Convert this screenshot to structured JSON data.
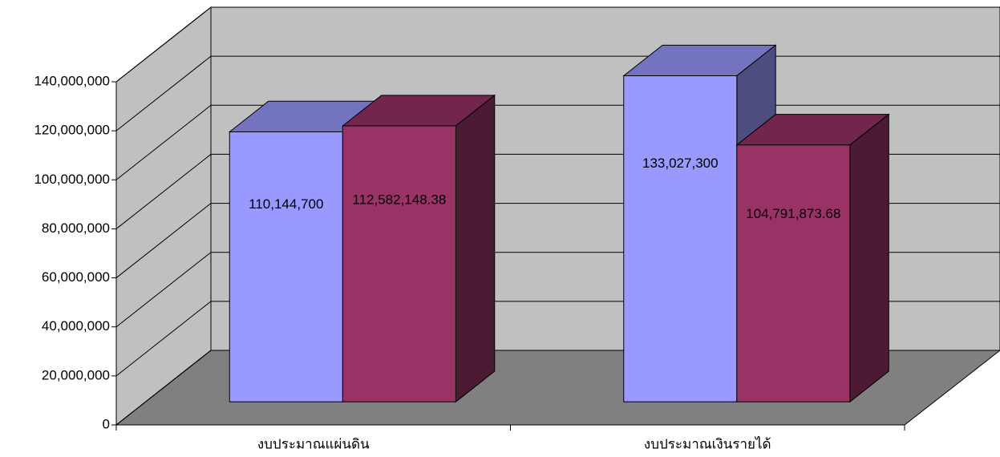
{
  "chart_data": {
    "type": "bar3d",
    "categories": [
      "งบประมาณแผ่นดิน",
      "งบประมาณเงินรายได้"
    ],
    "series": [
      {
        "color": "#9999ff",
        "values": [
          110144700,
          133027300
        ],
        "value_labels": [
          "110,144,700",
          "133,027,300"
        ]
      },
      {
        "color": "#993366",
        "values": [
          112582148.38,
          104791873.68
        ],
        "value_labels": [
          "112,582,148.38",
          "104,791,873.68"
        ]
      }
    ],
    "ylim": [
      0,
      140000000
    ],
    "yticks": [
      {
        "value": 0,
        "label": "0"
      },
      {
        "value": 20000000,
        "label": "20,000,000"
      },
      {
        "value": 40000000,
        "label": "40,000,000"
      },
      {
        "value": 60000000,
        "label": "60,000,000"
      },
      {
        "value": 80000000,
        "label": "80,000,000"
      },
      {
        "value": 100000000,
        "label": "100,000,000"
      },
      {
        "value": 120000000,
        "label": "120,000,000"
      },
      {
        "value": 140000000,
        "label": "140,000,000"
      }
    ],
    "grid": true,
    "wall_color": "#c0c0c0",
    "floor_color": "#808080"
  }
}
